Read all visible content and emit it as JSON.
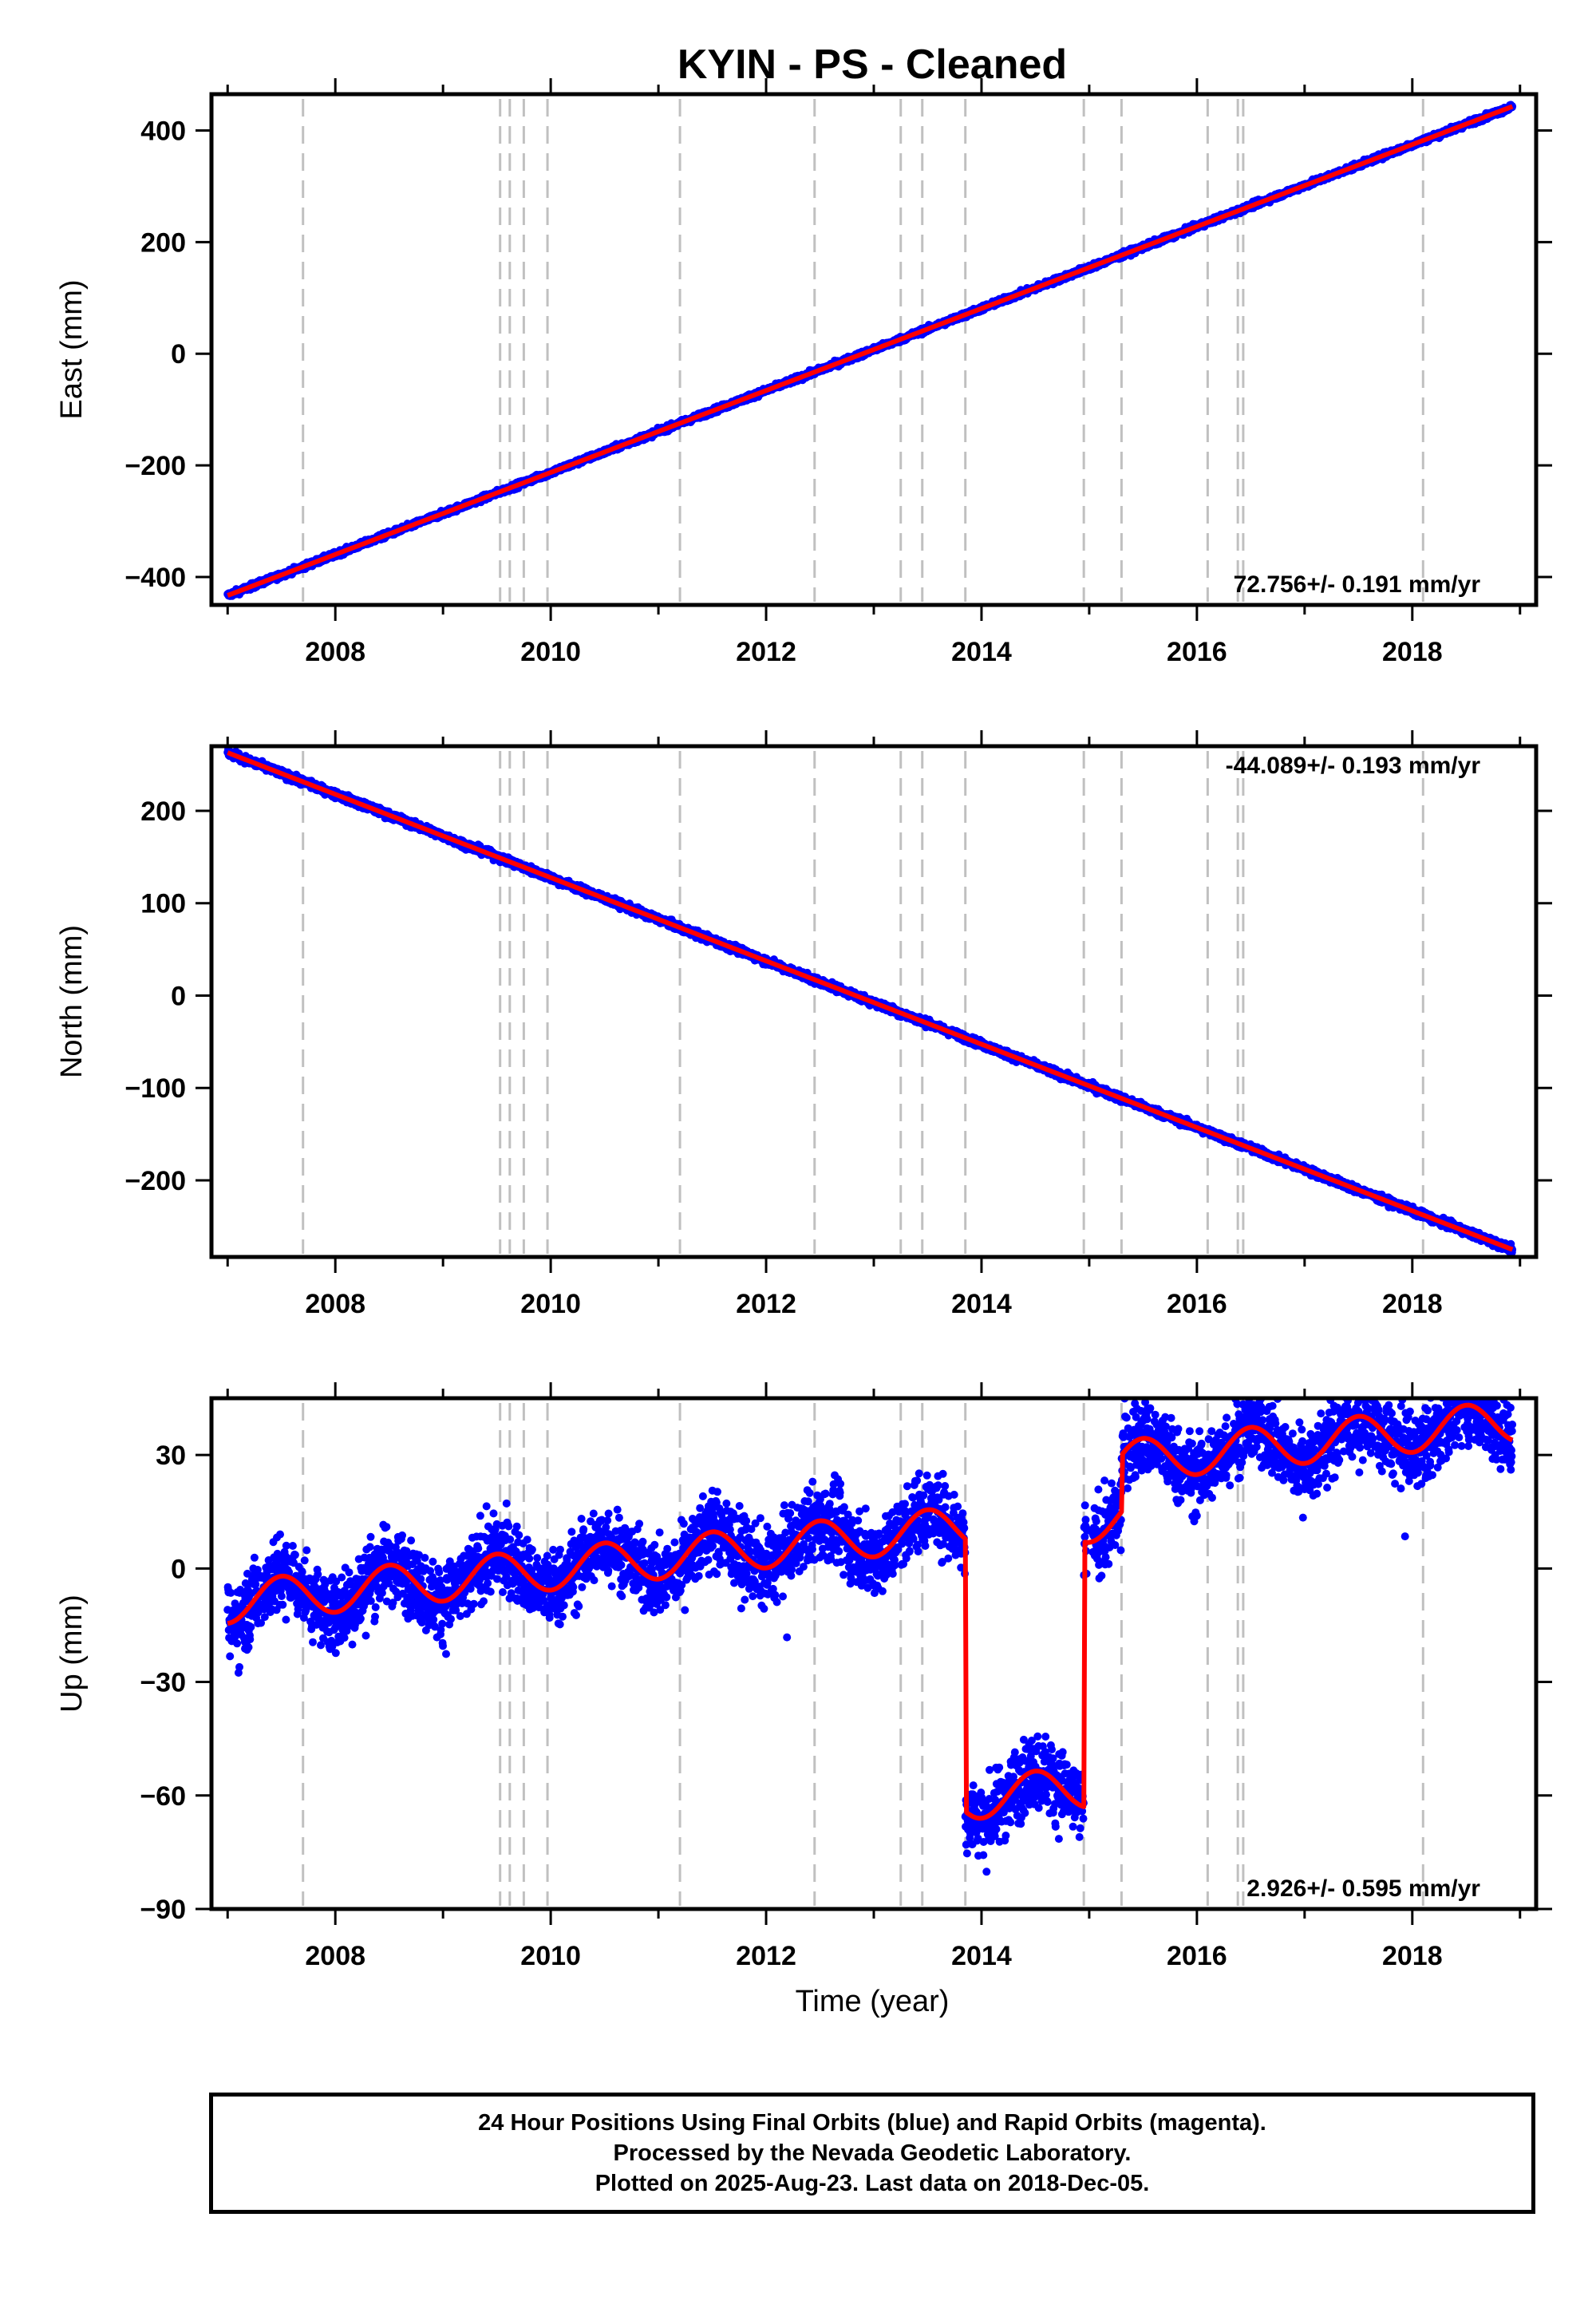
{
  "chart_data": {
    "type": "scatter",
    "title": "KYIN  - PS - Cleaned",
    "xlabel": "Time (year)",
    "x_tick_labels": [
      "2008",
      "2010",
      "2012",
      "2014",
      "2016",
      "2018"
    ],
    "xlim": [
      2006.85,
      2019.15
    ],
    "x_data_range": [
      2007.0,
      2018.93
    ],
    "equipment_change_years": [
      2007.7,
      2009.53,
      2009.62,
      2009.75,
      2009.97,
      2011.2,
      2012.45,
      2013.25,
      2013.45,
      2013.85,
      2014.95,
      2015.3,
      2016.1,
      2016.38,
      2016.43,
      2018.1
    ],
    "series_colors": {
      "final_orbits": "#0000ff",
      "rapid_orbits": "#ff00ff",
      "model": "#ff0000",
      "equipment_lines": "#c0c0c0"
    },
    "panels": [
      {
        "component": "east",
        "ylabel": "East (mm)",
        "ylim": [
          -450,
          465
        ],
        "y_ticks": [
          -400,
          -200,
          0,
          200,
          400
        ],
        "y_tick_labels": [
          "−400",
          "−200",
          "0",
          "200",
          "400"
        ],
        "rate_label": "72.756+/- 0.191 mm/yr",
        "rate_label_position": "bottom-right",
        "rate_mm_per_yr": 72.756,
        "start_mm": -433,
        "end_mm": 443,
        "noise_mm": 2.5
      },
      {
        "component": "north",
        "ylabel": "North (mm)",
        "ylim": [
          -283,
          270
        ],
        "y_ticks": [
          -200,
          -100,
          0,
          100,
          200
        ],
        "y_tick_labels": [
          "−200",
          "−100",
          "0",
          "100",
          "200"
        ],
        "rate_label": "-44.089+/- 0.193 mm/yr",
        "rate_label_position": "top-right",
        "rate_mm_per_yr": -44.089,
        "start_mm": 263,
        "end_mm": -275,
        "noise_mm": 2.0
      },
      {
        "component": "up",
        "ylabel": "Up (mm)",
        "ylim": [
          -90,
          45
        ],
        "y_ticks": [
          -90,
          -60,
          -30,
          0,
          30
        ],
        "y_tick_labels": [
          "−90",
          "−60",
          "−30",
          "0",
          "30"
        ],
        "rate_label": "2.926+/- 0.595 mm/yr",
        "rate_label_position": "bottom-right",
        "rate_mm_per_yr": 2.926,
        "seasonal_amplitude_mm": 5.5,
        "offsets": [
          {
            "year": 2013.85,
            "offset_mm": -72
          },
          {
            "year": 2014.95,
            "offset_mm": 70
          },
          {
            "year": 2015.3,
            "offset_mm": 15
          }
        ],
        "noise_mm": 5.0
      }
    ]
  },
  "footer": {
    "line1": "24 Hour Positions Using Final Orbits (blue) and Rapid Orbits (magenta).",
    "line2": "Processed by the Nevada Geodetic Laboratory.",
    "line3": "Plotted on 2025-Aug-23. Last data on 2018-Dec-05."
  }
}
